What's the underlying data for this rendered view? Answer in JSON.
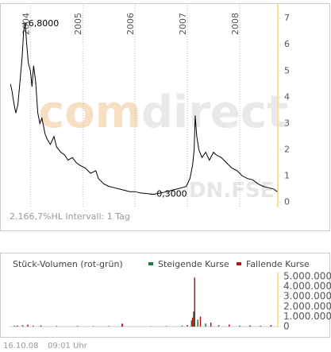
{
  "chart_data": [
    {
      "type": "line",
      "color": "#000000",
      "x": [
        2003.62,
        2003.65,
        2003.68,
        2003.72,
        2003.76,
        2003.8,
        2003.84,
        2003.87,
        2003.9,
        2003.93,
        2003.96,
        2004.0,
        2004.03,
        2004.06,
        2004.1,
        2004.14,
        2004.18,
        2004.22,
        2004.28,
        2004.32,
        2004.38,
        2004.45,
        2004.5,
        2004.58,
        2004.65,
        2004.72,
        2004.8,
        2004.88,
        2004.95,
        2005.05,
        2005.15,
        2005.25,
        2005.3,
        2005.4,
        2005.5,
        2005.6,
        2005.7,
        2005.8,
        2005.9,
        2006.0,
        2006.1,
        2006.2,
        2006.35,
        2006.5,
        2006.6,
        2006.7,
        2006.8,
        2006.9,
        2006.98,
        2007.05,
        2007.1,
        2007.13,
        2007.15,
        2007.18,
        2007.22,
        2007.28,
        2007.35,
        2007.42,
        2007.5,
        2007.55,
        2007.65,
        2007.75,
        2007.85,
        2007.95,
        2008.05,
        2008.15,
        2008.25,
        2008.35,
        2008.45,
        2008.55,
        2008.65,
        2008.72
      ],
      "values": [
        4.5,
        4.2,
        3.8,
        3.4,
        3.7,
        4.6,
        5.5,
        6.5,
        6.8,
        6.0,
        5.3,
        5.0,
        4.4,
        5.2,
        4.6,
        3.4,
        3.0,
        3.2,
        2.6,
        2.4,
        2.2,
        2.5,
        2.1,
        1.9,
        1.8,
        1.6,
        1.7,
        1.5,
        1.4,
        1.3,
        1.1,
        1.2,
        0.9,
        0.7,
        0.6,
        0.55,
        0.5,
        0.45,
        0.4,
        0.4,
        0.35,
        0.33,
        0.3,
        0.35,
        0.4,
        0.45,
        0.5,
        0.55,
        0.6,
        0.9,
        1.4,
        2.0,
        3.3,
        2.5,
        2.0,
        1.7,
        1.9,
        1.6,
        1.9,
        1.8,
        1.7,
        1.5,
        1.3,
        1.2,
        1.0,
        0.9,
        0.85,
        0.7,
        0.6,
        0.55,
        0.5,
        0.4
      ],
      "xlim": [
        2003.6,
        2008.73
      ],
      "xticks": [
        2004,
        2005,
        2006,
        2007,
        2008
      ],
      "ylim": [
        -0.2,
        7.4
      ],
      "yticks": [
        0,
        1,
        2,
        3,
        4,
        5,
        6,
        7
      ],
      "grid": true,
      "annotations": [
        {
          "label": "6,8000",
          "x": 2003.9,
          "value": 6.8
        },
        {
          "label": "0,3000",
          "x": 2006.35,
          "value": 0.3
        }
      ],
      "watermark": [
        "com",
        "direct",
        "DN.FSE"
      ],
      "info": "2.166,7%HL Intervall: 1 Tag"
    },
    {
      "type": "bar",
      "title": "Stück-Volumen (rot-grün)",
      "xlim": [
        2003.6,
        2008.73
      ],
      "ylim": [
        0,
        5400000
      ],
      "yticks": [
        0,
        {
          "value": 1000000,
          "label": "1.000.000"
        },
        {
          "value": 2000000,
          "label": "2.000.000"
        },
        {
          "value": 3000000,
          "label": "3.000.000"
        },
        {
          "value": 4000000,
          "label": "4.000.000"
        },
        {
          "value": 5000000,
          "label": "5.000.000"
        }
      ],
      "series": [
        {
          "name": "Steigende Kurse",
          "color": "#1a7a3a",
          "x": [
            2003.7,
            2003.85,
            2004.05,
            2004.5,
            2005.2,
            2005.75,
            2006.3,
            2006.9,
            2007.08,
            2007.12,
            2007.2,
            2007.35,
            2007.6,
            2008.0,
            2008.4
          ],
          "values": [
            80000,
            150000,
            100000,
            60000,
            50000,
            300000,
            40000,
            100000,
            600000,
            1500000,
            700000,
            300000,
            150000,
            100000,
            80000
          ]
        },
        {
          "name": "Fallende Kurse",
          "color": "#b01818",
          "x": [
            2003.75,
            2003.95,
            2004.2,
            2004.9,
            2005.5,
            2005.76,
            2006.6,
            2007.0,
            2007.1,
            2007.14,
            2007.25,
            2007.45,
            2007.8,
            2008.2,
            2008.6
          ],
          "values": [
            100000,
            200000,
            120000,
            60000,
            50000,
            250000,
            50000,
            150000,
            900000,
            4900000,
            1000000,
            400000,
            200000,
            120000,
            150000
          ]
        }
      ]
    }
  ],
  "footer": {
    "date": "16.10.08",
    "time": "09:01 Uhr"
  }
}
